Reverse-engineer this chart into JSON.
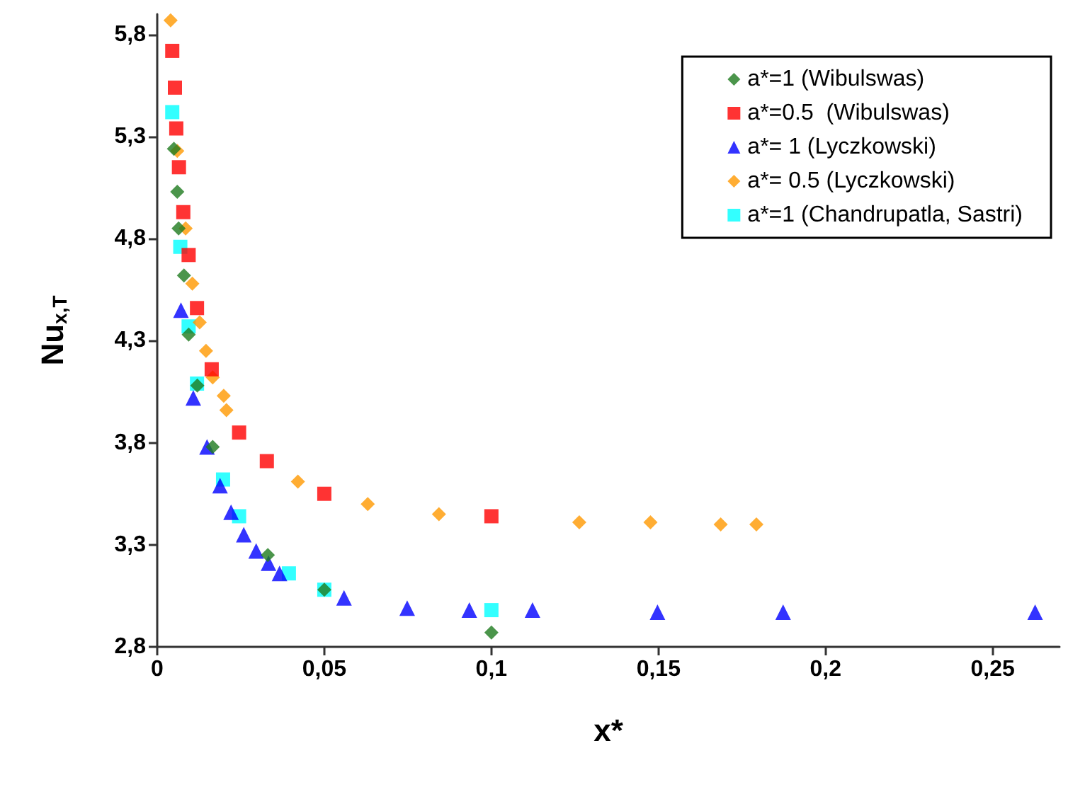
{
  "chart_data": {
    "type": "scatter",
    "xlabel": "x*",
    "ylabel": "Nu$_{x,T}$",
    "xlim": [
      0,
      0.27
    ],
    "ylim": [
      2.8,
      5.9
    ],
    "xticks": [
      0,
      {
        "value": 0.05,
        "label": "0,05"
      },
      {
        "value": 0.1,
        "label": "0,1"
      },
      {
        "value": 0.15,
        "label": "0,15"
      },
      {
        "value": 0.2,
        "label": "0,2"
      },
      {
        "value": 0.25,
        "label": "0,25"
      }
    ],
    "yticks": [
      {
        "value": 2.8,
        "label": "2,8"
      },
      {
        "value": 3.3,
        "label": "3,3"
      },
      {
        "value": 3.8,
        "label": "3,8"
      },
      {
        "value": 4.3,
        "label": "4,3"
      },
      {
        "value": 4.8,
        "label": "4,8"
      },
      {
        "value": 5.3,
        "label": "5,3"
      },
      {
        "value": 5.8,
        "label": "5,8"
      }
    ],
    "grid": false,
    "legend": "top right",
    "series": [
      {
        "name": "a*=1 (Wibulswas)",
        "color": "#1e7a1e",
        "marker": "diamond",
        "x": [
          0.005,
          0.006,
          0.0064,
          0.008,
          0.0094,
          0.012,
          0.0166,
          0.0331,
          0.05,
          0.1
        ],
        "values": [
          5.24,
          5.03,
          4.85,
          4.62,
          4.33,
          4.08,
          3.78,
          3.25,
          3.08,
          2.87
        ]
      },
      {
        "name": "a*=0.5  (Wibulswas)",
        "color": "#ff0000",
        "marker": "square",
        "x": [
          0.0045,
          0.0053,
          0.0057,
          0.0065,
          0.0078,
          0.0094,
          0.0119,
          0.0163,
          0.0245,
          0.0328,
          0.05,
          0.1
        ],
        "values": [
          5.72,
          5.54,
          5.34,
          5.15,
          4.93,
          4.72,
          4.46,
          4.16,
          3.85,
          3.71,
          3.55,
          3.44
        ]
      },
      {
        "name": "a*= 1 (Lyczkowski)",
        "color": "#0000ff",
        "marker": "triangle",
        "x": [
          0.0071,
          0.0108,
          0.0149,
          0.0188,
          0.0221,
          0.0259,
          0.0296,
          0.0333,
          0.0366,
          0.0559,
          0.0748,
          0.0934,
          0.1123,
          0.1497,
          0.1873,
          0.2627
        ],
        "values": [
          4.45,
          4.02,
          3.78,
          3.59,
          3.46,
          3.35,
          3.27,
          3.21,
          3.16,
          3.04,
          2.99,
          2.98,
          2.98,
          2.97,
          2.97,
          2.97
        ]
      },
      {
        "name": "a*= 0.5 (Lyczkowski)",
        "color": "#ff9900",
        "marker": "diamond",
        "x": [
          0.004,
          0.006,
          0.0085,
          0.0105,
          0.0127,
          0.0146,
          0.0166,
          0.0199,
          0.0207,
          0.0421,
          0.063,
          0.0843,
          0.1263,
          0.1476,
          0.1686,
          0.1793
        ],
        "values": [
          5.87,
          5.23,
          4.85,
          4.58,
          4.39,
          4.25,
          4.12,
          4.03,
          3.96,
          3.61,
          3.5,
          3.45,
          3.41,
          3.41,
          3.4,
          3.4
        ]
      },
      {
        "name": "a*=1 (Chandrupatla, Sastri)",
        "color": "#00ffff",
        "marker": "square",
        "x": [
          0.0045,
          0.0069,
          0.0094,
          0.0119,
          0.0197,
          0.0245,
          0.0394,
          0.05,
          0.1
        ],
        "values": [
          5.42,
          4.76,
          4.37,
          4.09,
          3.62,
          3.44,
          3.16,
          3.08,
          2.98
        ]
      }
    ]
  }
}
